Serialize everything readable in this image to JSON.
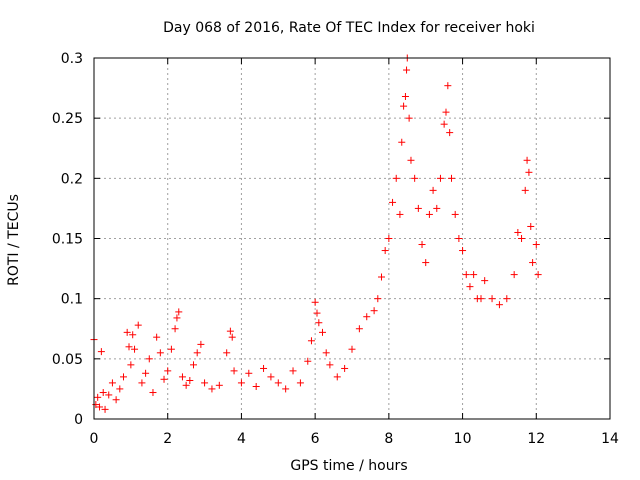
{
  "chart_data": {
    "type": "scatter",
    "title": "Day 068 of 2016, Rate Of TEC Index for receiver hoki",
    "xlabel": "GPS time / hours",
    "ylabel": "ROTI / TECUs",
    "xlim": [
      0,
      14
    ],
    "ylim": [
      0,
      0.3
    ],
    "xticks": [
      0,
      2,
      4,
      6,
      8,
      10,
      12,
      14
    ],
    "xtick_labels": [
      "0",
      "2",
      "4",
      "6",
      "8",
      "10",
      "12",
      "14"
    ],
    "yticks": [
      0,
      0.05,
      0.1,
      0.15,
      0.2,
      0.25,
      0.3
    ],
    "ytick_labels": [
      "0",
      "0.05",
      "0.1",
      "0.15",
      "0.2",
      "0.25",
      "0.3"
    ],
    "grid": true,
    "marker": "+",
    "color": "#ff0000",
    "series": [
      {
        "name": "ROTI",
        "points": [
          [
            0.0,
            0.066
          ],
          [
            0.05,
            0.012
          ],
          [
            0.1,
            0.018
          ],
          [
            0.15,
            0.01
          ],
          [
            0.2,
            0.056
          ],
          [
            0.25,
            0.022
          ],
          [
            0.3,
            0.008
          ],
          [
            0.4,
            0.02
          ],
          [
            0.5,
            0.03
          ],
          [
            0.6,
            0.016
          ],
          [
            0.7,
            0.025
          ],
          [
            0.8,
            0.035
          ],
          [
            0.9,
            0.072
          ],
          [
            0.95,
            0.06
          ],
          [
            1.0,
            0.045
          ],
          [
            1.05,
            0.07
          ],
          [
            1.1,
            0.058
          ],
          [
            1.2,
            0.078
          ],
          [
            1.3,
            0.03
          ],
          [
            1.4,
            0.038
          ],
          [
            1.5,
            0.05
          ],
          [
            1.6,
            0.022
          ],
          [
            1.7,
            0.068
          ],
          [
            1.8,
            0.055
          ],
          [
            1.9,
            0.033
          ],
          [
            2.0,
            0.04
          ],
          [
            2.1,
            0.058
          ],
          [
            2.2,
            0.075
          ],
          [
            2.25,
            0.084
          ],
          [
            2.3,
            0.089
          ],
          [
            2.4,
            0.035
          ],
          [
            2.5,
            0.028
          ],
          [
            2.6,
            0.032
          ],
          [
            2.7,
            0.045
          ],
          [
            2.8,
            0.055
          ],
          [
            2.9,
            0.062
          ],
          [
            3.0,
            0.03
          ],
          [
            3.2,
            0.025
          ],
          [
            3.4,
            0.028
          ],
          [
            3.6,
            0.055
          ],
          [
            3.7,
            0.073
          ],
          [
            3.75,
            0.068
          ],
          [
            3.8,
            0.04
          ],
          [
            4.0,
            0.03
          ],
          [
            4.2,
            0.038
          ],
          [
            4.4,
            0.027
          ],
          [
            4.6,
            0.042
          ],
          [
            4.8,
            0.035
          ],
          [
            5.0,
            0.03
          ],
          [
            5.2,
            0.025
          ],
          [
            5.4,
            0.04
          ],
          [
            5.6,
            0.03
          ],
          [
            5.8,
            0.048
          ],
          [
            5.9,
            0.065
          ],
          [
            6.0,
            0.097
          ],
          [
            6.05,
            0.088
          ],
          [
            6.1,
            0.08
          ],
          [
            6.2,
            0.072
          ],
          [
            6.3,
            0.055
          ],
          [
            6.4,
            0.045
          ],
          [
            6.6,
            0.035
          ],
          [
            6.8,
            0.042
          ],
          [
            7.0,
            0.058
          ],
          [
            7.2,
            0.075
          ],
          [
            7.4,
            0.085
          ],
          [
            7.6,
            0.09
          ],
          [
            7.7,
            0.1
          ],
          [
            7.8,
            0.118
          ],
          [
            7.9,
            0.14
          ],
          [
            8.0,
            0.15
          ],
          [
            8.1,
            0.18
          ],
          [
            8.2,
            0.2
          ],
          [
            8.3,
            0.17
          ],
          [
            8.35,
            0.23
          ],
          [
            8.4,
            0.26
          ],
          [
            8.45,
            0.268
          ],
          [
            8.48,
            0.29
          ],
          [
            8.5,
            0.3
          ],
          [
            8.55,
            0.25
          ],
          [
            8.6,
            0.215
          ],
          [
            8.7,
            0.2
          ],
          [
            8.8,
            0.175
          ],
          [
            8.9,
            0.145
          ],
          [
            9.0,
            0.13
          ],
          [
            9.1,
            0.17
          ],
          [
            9.2,
            0.19
          ],
          [
            9.3,
            0.175
          ],
          [
            9.4,
            0.2
          ],
          [
            9.5,
            0.245
          ],
          [
            9.55,
            0.255
          ],
          [
            9.6,
            0.277
          ],
          [
            9.65,
            0.238
          ],
          [
            9.7,
            0.2
          ],
          [
            9.8,
            0.17
          ],
          [
            9.9,
            0.15
          ],
          [
            10.0,
            0.14
          ],
          [
            10.1,
            0.12
          ],
          [
            10.2,
            0.11
          ],
          [
            10.3,
            0.12
          ],
          [
            10.4,
            0.1
          ],
          [
            10.5,
            0.1
          ],
          [
            10.6,
            0.115
          ],
          [
            10.8,
            0.1
          ],
          [
            11.0,
            0.095
          ],
          [
            11.2,
            0.1
          ],
          [
            11.4,
            0.12
          ],
          [
            11.5,
            0.155
          ],
          [
            11.6,
            0.15
          ],
          [
            11.7,
            0.19
          ],
          [
            11.75,
            0.215
          ],
          [
            11.8,
            0.205
          ],
          [
            11.85,
            0.16
          ],
          [
            11.9,
            0.13
          ],
          [
            12.0,
            0.145
          ],
          [
            12.05,
            0.12
          ]
        ]
      }
    ]
  }
}
